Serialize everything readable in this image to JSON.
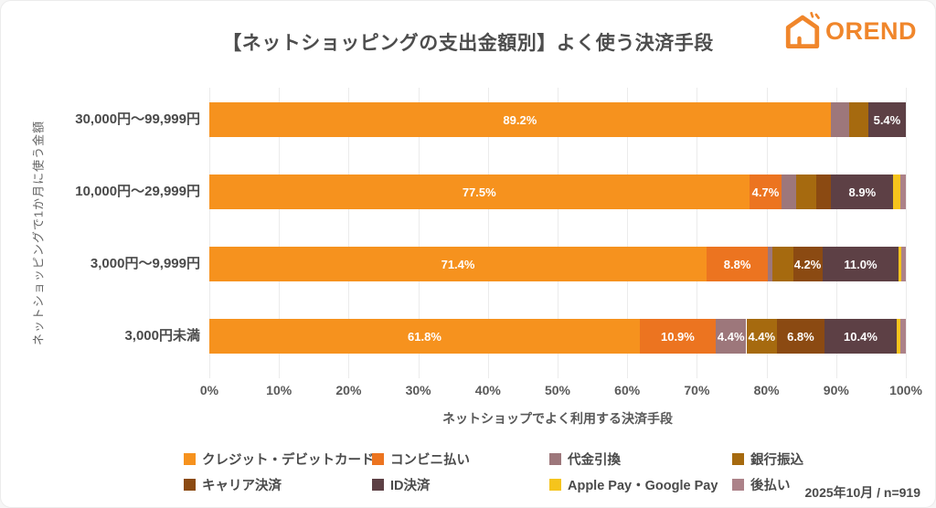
{
  "title": "【ネットショッピングの支出金額別】よく使う決済手段",
  "logo": {
    "text": "OREND",
    "color": "#F0862B",
    "icon": "orend-house-icon"
  },
  "footer": {
    "note": "2025年10月 / n=919"
  },
  "chart_data": {
    "type": "bar",
    "orientation": "horizontal",
    "stacked": true,
    "title": "【ネットショッピングの支出金額別】よく使う決済手段",
    "xlabel": "ネットショップでよく利用する決済手段",
    "ylabel": "ネットショッピングで1か月に使う金額",
    "xlim": [
      0,
      100
    ],
    "grid": true,
    "legend_position": "bottom",
    "x_ticks": [
      "0%",
      "10%",
      "20%",
      "30%",
      "40%",
      "50%",
      "60%",
      "70%",
      "80%",
      "90%",
      "100%"
    ],
    "categories": [
      "30,000円〜99,999円",
      "10,000円〜29,999円",
      "3,000円〜9,999円",
      "3,000円未満"
    ],
    "series": [
      {
        "name": "クレジット・デビットカード",
        "color": "#F6921E",
        "values": [
          89.2,
          77.5,
          71.4,
          61.8
        ],
        "labels": [
          "89.2%",
          "77.5%",
          "71.4%",
          "61.8%"
        ]
      },
      {
        "name": "コンビニ払い",
        "color": "#EC7420",
        "values": [
          0,
          4.7,
          8.8,
          10.9
        ],
        "labels": [
          null,
          "4.7%",
          "8.8%",
          "10.9%"
        ]
      },
      {
        "name": "代金引換",
        "color": "#9D777B",
        "values": [
          2.7,
          2.0,
          0.6,
          4.4
        ],
        "labels": [
          null,
          null,
          null,
          "4.4%"
        ]
      },
      {
        "name": "銀行振込",
        "color": "#A66A0F",
        "values": [
          2.7,
          2.9,
          3.0,
          4.4
        ],
        "labels": [
          null,
          null,
          null,
          "4.4%"
        ]
      },
      {
        "name": "キャリア決済",
        "color": "#8B4A12",
        "values": [
          0,
          2.2,
          4.2,
          6.8
        ],
        "labels": [
          null,
          null,
          "4.2%",
          "6.8%"
        ]
      },
      {
        "name": "ID決済",
        "color": "#5D4045",
        "values": [
          5.4,
          8.9,
          11.0,
          10.4
        ],
        "labels": [
          "5.4%",
          "8.9%",
          "11.0%",
          "10.4%"
        ]
      },
      {
        "name": "Apple Pay・Google Pay",
        "color": "#F5C41C",
        "values": [
          0,
          1.0,
          0.4,
          0.5
        ],
        "labels": [
          null,
          null,
          null,
          null
        ]
      },
      {
        "name": "後払い",
        "color": "#AC8289",
        "values": [
          0,
          0.8,
          0.6,
          0.8
        ],
        "labels": [
          null,
          null,
          null,
          null
        ]
      }
    ]
  }
}
